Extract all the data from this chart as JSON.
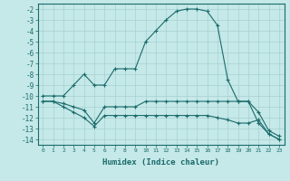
{
  "xlabel": "Humidex (Indice chaleur)",
  "background_color": "#c5e8e8",
  "grid_color": "#a8d0d0",
  "line_color": "#1a6b6b",
  "xlim": [
    -0.5,
    23.5
  ],
  "ylim": [
    -14.5,
    -1.5
  ],
  "yticks": [
    -2,
    -3,
    -4,
    -5,
    -6,
    -7,
    -8,
    -9,
    -10,
    -11,
    -12,
    -13,
    -14
  ],
  "xticks": [
    0,
    1,
    2,
    3,
    4,
    5,
    6,
    7,
    8,
    9,
    10,
    11,
    12,
    13,
    14,
    15,
    16,
    17,
    18,
    19,
    20,
    21,
    22,
    23
  ],
  "series1_x": [
    0,
    1,
    2,
    3,
    4,
    5,
    6,
    7,
    8,
    9,
    10,
    11,
    12,
    13,
    14,
    15,
    16,
    17,
    18,
    19,
    20,
    21,
    22,
    23
  ],
  "series1_y": [
    -10,
    -10,
    -10,
    -9,
    -8,
    -9,
    -9,
    -7.5,
    -7.5,
    -7.5,
    -5,
    -4,
    -3,
    -2.2,
    -2,
    -2,
    -2.2,
    -3.5,
    -8.5,
    -10.5,
    -10.5,
    -12.5,
    -13.5,
    -14
  ],
  "series2_x": [
    0,
    1,
    2,
    3,
    4,
    5,
    6,
    7,
    8,
    9,
    10,
    11,
    12,
    13,
    14,
    15,
    16,
    17,
    18,
    19,
    20,
    21,
    22,
    23
  ],
  "series2_y": [
    -10.5,
    -10.5,
    -10.7,
    -11,
    -11.3,
    -12.5,
    -11,
    -11,
    -11,
    -11,
    -10.5,
    -10.5,
    -10.5,
    -10.5,
    -10.5,
    -10.5,
    -10.5,
    -10.5,
    -10.5,
    -10.5,
    -10.5,
    -11.5,
    -13.2,
    -13.7
  ],
  "series3_x": [
    0,
    1,
    2,
    3,
    4,
    5,
    6,
    7,
    8,
    9,
    10,
    11,
    12,
    13,
    14,
    15,
    16,
    17,
    18,
    19,
    20,
    21,
    22,
    23
  ],
  "series3_y": [
    -10.5,
    -10.5,
    -11,
    -11.5,
    -12,
    -12.8,
    -11.8,
    -11.8,
    -11.8,
    -11.8,
    -11.8,
    -11.8,
    -11.8,
    -11.8,
    -11.8,
    -11.8,
    -11.8,
    -12.0,
    -12.2,
    -12.5,
    -12.5,
    -12.2,
    -13.5,
    -14.0
  ]
}
